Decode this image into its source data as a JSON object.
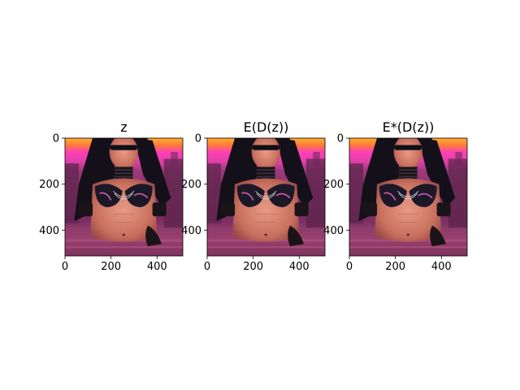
{
  "figure": {
    "background": "#ffffff"
  },
  "chart_data": [
    {
      "type": "image",
      "title": "z",
      "xlabel": "",
      "ylabel": "",
      "xlim": [
        0,
        512
      ],
      "ylim": [
        512,
        0
      ],
      "x_ticks": [
        0,
        200,
        400
      ],
      "y_ticks": [
        0,
        200,
        400
      ],
      "image_description_colors": {
        "sky_top": "#ff9a2e",
        "sky_band": "#ff3fb8",
        "skin": "#d97a6a",
        "hair": "#14101a",
        "background_city": "#8a3a6a",
        "ground": "#a84a7a"
      }
    },
    {
      "type": "image",
      "title": "E(D(z))",
      "xlabel": "",
      "ylabel": "",
      "xlim": [
        0,
        512
      ],
      "ylim": [
        512,
        0
      ],
      "x_ticks": [
        0,
        200,
        400
      ],
      "y_ticks": [
        0,
        200,
        400
      ],
      "image_description_colors": {
        "sky_top": "#ff9a2e",
        "sky_band": "#ff3fb8",
        "skin": "#d97a6a",
        "hair": "#14101a",
        "background_city": "#8a3a6a",
        "ground": "#a84a7a"
      }
    },
    {
      "type": "image",
      "title": "E*(D(z))",
      "xlabel": "",
      "ylabel": "",
      "xlim": [
        0,
        512
      ],
      "ylim": [
        512,
        0
      ],
      "x_ticks": [
        0,
        200,
        400
      ],
      "y_ticks": [
        0,
        200,
        400
      ],
      "image_description_colors": {
        "sky_top": "#ff9a2e",
        "sky_band": "#ff3fb8",
        "skin": "#d97a6a",
        "hair": "#14101a",
        "background_city": "#8a3a6a",
        "ground": "#a84a7a"
      }
    }
  ]
}
